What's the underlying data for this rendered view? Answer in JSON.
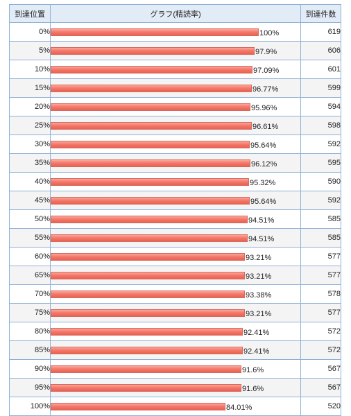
{
  "header": {
    "position": "到達位置",
    "graph": "グラフ(精読率)",
    "count": "到達件数"
  },
  "rows": [
    {
      "position": "0%",
      "rate_label": "100%",
      "rate": 100,
      "count": "619"
    },
    {
      "position": "5%",
      "rate_label": "97.9%",
      "rate": 97.9,
      "count": "606"
    },
    {
      "position": "10%",
      "rate_label": "97.09%",
      "rate": 97.09,
      "count": "601"
    },
    {
      "position": "15%",
      "rate_label": "96.77%",
      "rate": 96.77,
      "count": "599"
    },
    {
      "position": "20%",
      "rate_label": "95.96%",
      "rate": 95.96,
      "count": "594"
    },
    {
      "position": "25%",
      "rate_label": "96.61%",
      "rate": 96.61,
      "count": "598"
    },
    {
      "position": "30%",
      "rate_label": "95.64%",
      "rate": 95.64,
      "count": "592"
    },
    {
      "position": "35%",
      "rate_label": "96.12%",
      "rate": 96.12,
      "count": "595"
    },
    {
      "position": "40%",
      "rate_label": "95.32%",
      "rate": 95.32,
      "count": "590"
    },
    {
      "position": "45%",
      "rate_label": "95.64%",
      "rate": 95.64,
      "count": "592"
    },
    {
      "position": "50%",
      "rate_label": "94.51%",
      "rate": 94.51,
      "count": "585"
    },
    {
      "position": "55%",
      "rate_label": "94.51%",
      "rate": 94.51,
      "count": "585"
    },
    {
      "position": "60%",
      "rate_label": "93.21%",
      "rate": 93.21,
      "count": "577"
    },
    {
      "position": "65%",
      "rate_label": "93.21%",
      "rate": 93.21,
      "count": "577"
    },
    {
      "position": "70%",
      "rate_label": "93.38%",
      "rate": 93.38,
      "count": "578"
    },
    {
      "position": "75%",
      "rate_label": "93.21%",
      "rate": 93.21,
      "count": "577"
    },
    {
      "position": "80%",
      "rate_label": "92.41%",
      "rate": 92.41,
      "count": "572"
    },
    {
      "position": "85%",
      "rate_label": "92.41%",
      "rate": 92.41,
      "count": "572"
    },
    {
      "position": "90%",
      "rate_label": "91.6%",
      "rate": 91.6,
      "count": "567"
    },
    {
      "position": "95%",
      "rate_label": "91.6%",
      "rate": 91.6,
      "count": "567"
    },
    {
      "position": "100%",
      "rate_label": "84.01%",
      "rate": 84.01,
      "count": "520"
    }
  ],
  "colors": {
    "bar": "#f4796b",
    "header_bg": "#e2ecf7",
    "border": "#8fb0d6"
  }
}
